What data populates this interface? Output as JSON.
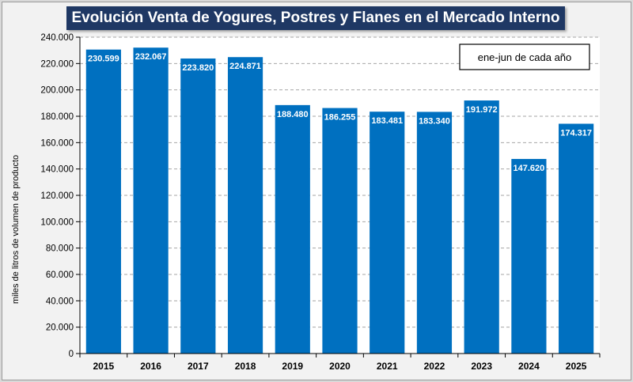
{
  "chart_data": {
    "type": "bar",
    "title": "Evolución Venta de Yogures, Postres y Flanes en el Mercado Interno",
    "ylabel": "miles de litros de volumen de producto",
    "annotation": "ene-jun de cada año",
    "categories": [
      "2015",
      "2016",
      "2017",
      "2018",
      "2019",
      "2020",
      "2021",
      "2022",
      "2023",
      "2024",
      "2025"
    ],
    "values": [
      230599,
      232067,
      223820,
      224871,
      188480,
      186255,
      183481,
      183340,
      191972,
      147620,
      174317
    ],
    "value_labels": [
      "230.599",
      "232.067",
      "223.820",
      "224.871",
      "188.480",
      "186.255",
      "183.481",
      "183.340",
      "191.972",
      "147.620",
      "174.317"
    ],
    "ylim": [
      0,
      240000
    ],
    "yticks": [
      0,
      20000,
      40000,
      60000,
      80000,
      100000,
      120000,
      140000,
      160000,
      180000,
      200000,
      220000,
      240000
    ],
    "ytick_labels": [
      "0",
      "20.000",
      "40.000",
      "60.000",
      "80.000",
      "100.000",
      "120.000",
      "140.000",
      "160.000",
      "180.000",
      "200.000",
      "220.000",
      "240.000"
    ],
    "grid": true,
    "bar_color": "#0070c0",
    "plot_background": "#ffffff",
    "grid_color": "#a6a6a6"
  }
}
